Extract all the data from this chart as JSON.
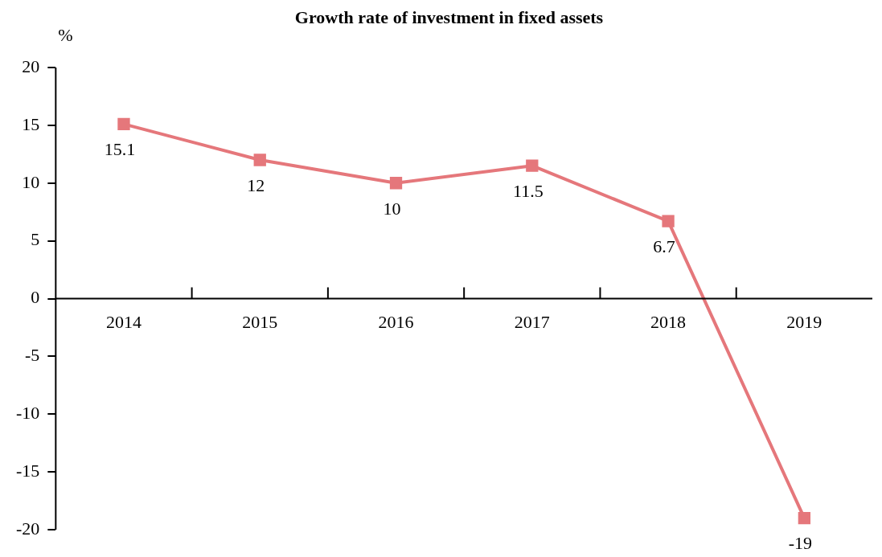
{
  "chart_data": {
    "type": "line",
    "title": "Growth rate of investment in fixed assets",
    "ylabel": "%",
    "categories": [
      "2014",
      "2015",
      "2016",
      "2017",
      "2018",
      "2019"
    ],
    "series": [
      {
        "color": "#e5777b",
        "values": [
          15.1,
          12,
          10,
          11.5,
          6.7,
          -19
        ]
      }
    ],
    "ylim": [
      -20,
      20
    ],
    "yticks": [
      -20,
      -15,
      -10,
      -5,
      0,
      5,
      10,
      15,
      20
    ],
    "marker": "square",
    "line_style": "solid",
    "data_labels": true,
    "grid": false,
    "legend": false
  }
}
